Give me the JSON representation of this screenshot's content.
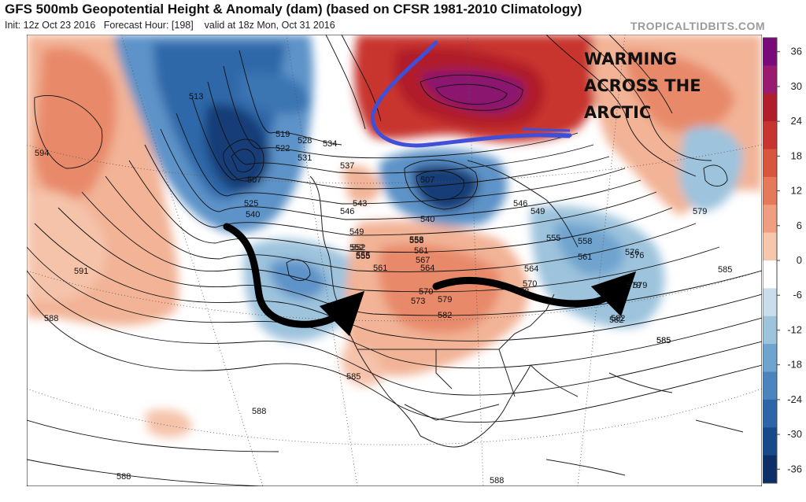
{
  "header": {
    "title": "GFS 500mb Geopotential Height & Anomaly (dam) (based on CFSR 1981-2010 Climatology)",
    "init": "Init: 12z Oct 23 2016",
    "forecast": "Forecast Hour: [198]",
    "valid": "valid at 18z Mon, Oct 31 2016",
    "watermark": "TROPICALTIDBITS.COM"
  },
  "annotation": {
    "lines": [
      "WARMING",
      "ACROSS THE",
      "ARCTIC"
    ]
  },
  "colorbar": {
    "ticks": [
      "36",
      "30",
      "24",
      "18",
      "12",
      "6",
      "0",
      "-6",
      "-12",
      "-18",
      "-24",
      "-30",
      "-36"
    ],
    "colors": [
      "#7a0a7a",
      "#9a1a70",
      "#b01e2c",
      "#c8352f",
      "#d9553c",
      "#e57959",
      "#ef9f80",
      "#f6c6ad",
      "#ffffff",
      "#c9ddea",
      "#9dc3dd",
      "#6fa4cf",
      "#4a85c0",
      "#2c66a8",
      "#174a8a",
      "#0b2f66"
    ]
  },
  "contour_labels": [
    {
      "text": "513"
    },
    {
      "text": "519"
    },
    {
      "text": "522"
    },
    {
      "text": "507"
    },
    {
      "text": "525"
    },
    {
      "text": "528"
    },
    {
      "text": "531"
    },
    {
      "text": "534"
    },
    {
      "text": "537"
    },
    {
      "text": "540"
    },
    {
      "text": "543"
    },
    {
      "text": "546"
    },
    {
      "text": "549"
    },
    {
      "text": "552"
    },
    {
      "text": "555"
    },
    {
      "text": "558"
    },
    {
      "text": "561"
    },
    {
      "text": "564"
    },
    {
      "text": "567"
    },
    {
      "text": "570"
    },
    {
      "text": "573"
    },
    {
      "text": "576"
    },
    {
      "text": "579"
    },
    {
      "text": "582"
    },
    {
      "text": "585"
    },
    {
      "text": "588"
    },
    {
      "text": "591"
    },
    {
      "text": "594"
    },
    {
      "text": "507"
    },
    {
      "text": "540"
    },
    {
      "text": "546"
    },
    {
      "text": "549"
    },
    {
      "text": "555"
    },
    {
      "text": "558"
    },
    {
      "text": "561"
    },
    {
      "text": "576"
    },
    {
      "text": "579"
    },
    {
      "text": "582"
    },
    {
      "text": "585"
    },
    {
      "text": "579"
    },
    {
      "text": "585"
    },
    {
      "text": "588"
    },
    {
      "text": "588"
    },
    {
      "text": "585"
    },
    {
      "text": "588"
    },
    {
      "text": "552"
    },
    {
      "text": "555"
    },
    {
      "text": "564"
    },
    {
      "text": "558"
    },
    {
      "text": "570"
    },
    {
      "text": "573"
    },
    {
      "text": "579"
    },
    {
      "text": "582"
    },
    {
      "text": "561"
    }
  ]
}
